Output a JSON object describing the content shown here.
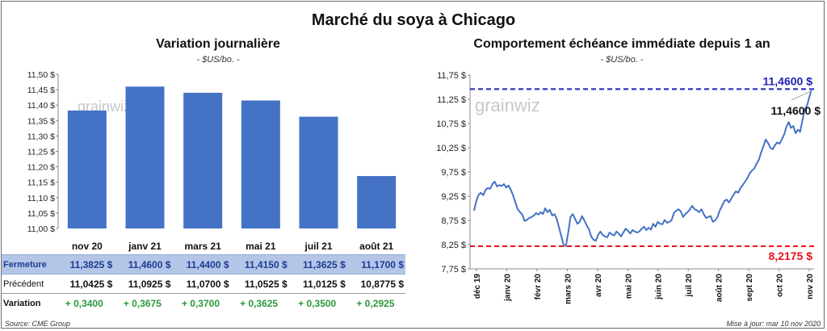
{
  "main_title": "Marché du soya à Chicago",
  "left": {
    "title": "Variation  journalière",
    "subtitle": "- $US/bo. -",
    "watermark": "grainwiz"
  },
  "right": {
    "title": "Comportement  échéance immédiate depuis 1 an",
    "subtitle": "- $US/bo. -",
    "watermark": "grainwiz",
    "current_label": "11,4600 $",
    "high_label": "11,4600 $",
    "low_label": "8,2175 $"
  },
  "table": {
    "rows": [
      {
        "label": "Fermeture",
        "values": [
          "11,3825  $",
          "11,4600  $",
          "11,4400  $",
          "11,4150  $",
          "11,3625  $",
          "11,1700  $"
        ]
      },
      {
        "label": "Précédent",
        "values": [
          "11,0425  $",
          "11,0925  $",
          "11,0700  $",
          "11,0525  $",
          "11,0125  $",
          "10,8775  $"
        ]
      },
      {
        "label": "Variation",
        "values": [
          "+ 0,3400",
          "+ 0,3675",
          "+ 0,3700",
          "+ 0,3625",
          "+ 0,3500",
          "+ 0,2925"
        ]
      }
    ]
  },
  "source": "Source: CME Group",
  "updated": "Mise à jour: mar 10 nov 2020",
  "colors": {
    "bar": "#4472c4",
    "line": "#4472c4",
    "high": "#1f1fb4",
    "low": "#e8121e",
    "variation": "#2a9a3a"
  },
  "chart_data": [
    {
      "type": "bar",
      "categories": [
        "nov 20",
        "janv 21",
        "mars 21",
        "mai 21",
        "juil 21",
        "août 21"
      ],
      "values": [
        11.3825,
        11.46,
        11.44,
        11.415,
        11.3625,
        11.17
      ],
      "ylim": [
        11.0,
        11.5
      ],
      "yticks": [
        "11,00 $",
        "11,05 $",
        "11,10 $",
        "11,15 $",
        "11,20 $",
        "11,25 $",
        "11,30 $",
        "11,35 $",
        "11,40 $",
        "11,45 $",
        "11,50 $"
      ],
      "ytick_values": [
        11.0,
        11.05,
        11.1,
        11.15,
        11.2,
        11.25,
        11.3,
        11.35,
        11.4,
        11.45,
        11.5
      ],
      "title": "Variation  journalière"
    },
    {
      "type": "line",
      "ylim": [
        7.75,
        11.75
      ],
      "yticks": [
        "7,75 $",
        "8,25 $",
        "8,75 $",
        "9,25 $",
        "9,75 $",
        "10,25 $",
        "10,75 $",
        "11,25 $",
        "11,75 $"
      ],
      "ytick_values": [
        7.75,
        8.25,
        8.75,
        9.25,
        9.75,
        10.25,
        10.75,
        11.25,
        11.75
      ],
      "xticks": [
        "déc 19",
        "janv 20",
        "févr 20",
        "mars 20",
        "avr 20",
        "mai 20",
        "juin 20",
        "juil 20",
        "août 20",
        "sept 20",
        "oct 20",
        "nov 20"
      ],
      "high": 11.46,
      "low": 8.2175,
      "values": [
        8.95,
        9.15,
        9.28,
        9.32,
        9.27,
        9.38,
        9.42,
        9.4,
        9.5,
        9.55,
        9.45,
        9.48,
        9.46,
        9.5,
        9.43,
        9.47,
        9.38,
        9.27,
        9.12,
        8.98,
        8.92,
        8.87,
        8.74,
        8.76,
        8.8,
        8.82,
        8.85,
        8.9,
        8.87,
        8.92,
        8.88,
        9.0,
        8.92,
        8.97,
        8.85,
        8.88,
        8.78,
        8.6,
        8.42,
        8.24,
        8.22,
        8.5,
        8.82,
        8.88,
        8.78,
        8.68,
        8.72,
        8.84,
        8.75,
        8.65,
        8.57,
        8.42,
        8.35,
        8.33,
        8.45,
        8.52,
        8.45,
        8.42,
        8.4,
        8.5,
        8.46,
        8.44,
        8.52,
        8.48,
        8.42,
        8.5,
        8.58,
        8.54,
        8.48,
        8.55,
        8.52,
        8.5,
        8.52,
        8.58,
        8.62,
        8.55,
        8.6,
        8.56,
        8.68,
        8.62,
        8.72,
        8.68,
        8.67,
        8.76,
        8.7,
        8.72,
        8.75,
        8.9,
        8.95,
        8.98,
        8.94,
        8.82,
        8.88,
        8.92,
        8.98,
        9.05,
        8.98,
        8.96,
        8.92,
        8.98,
        8.88,
        8.8,
        8.82,
        8.84,
        8.72,
        8.75,
        8.82,
        8.96,
        9.05,
        9.15,
        9.18,
        9.12,
        9.2,
        9.28,
        9.35,
        9.32,
        9.42,
        9.48,
        9.55,
        9.62,
        9.72,
        9.78,
        9.82,
        9.92,
        10.0,
        10.15,
        10.28,
        10.42,
        10.35,
        10.25,
        10.22,
        10.3,
        10.36,
        10.33,
        10.42,
        10.52,
        10.68,
        10.78,
        10.66,
        10.7,
        10.55,
        10.62,
        10.58,
        10.82,
        11.05,
        11.12,
        11.3,
        11.46
      ]
    }
  ]
}
